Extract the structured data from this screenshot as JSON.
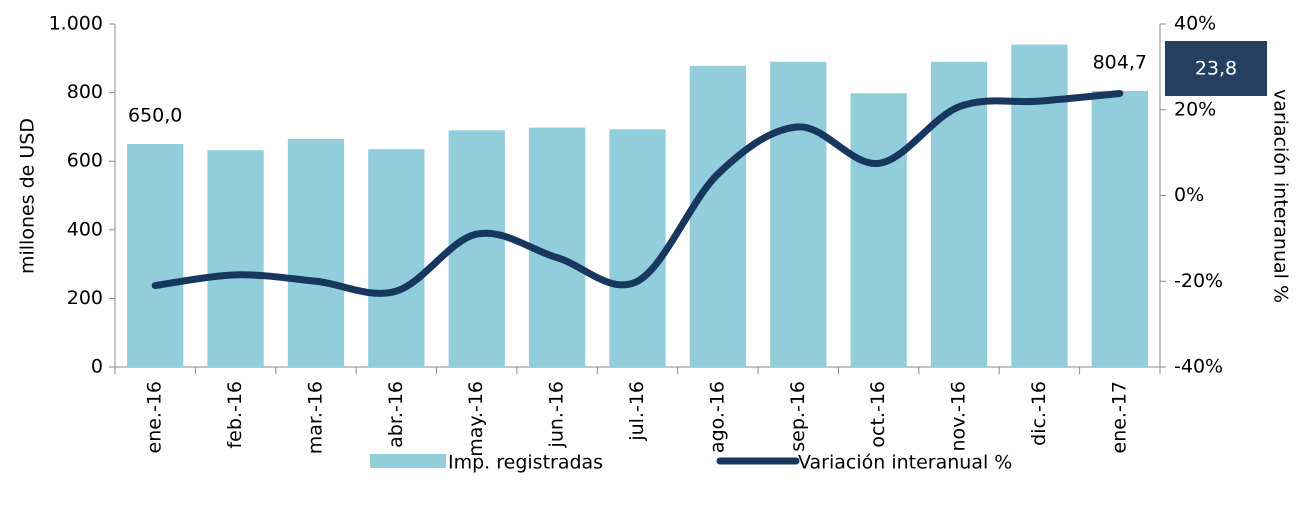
{
  "chart_data": {
    "type": "bar-line",
    "categories": [
      "ene.-16",
      "feb.-16",
      "mar.-16",
      "abr.-16",
      "may.-16",
      "jun.-16",
      "jul.-16",
      "ago.-16",
      "sep.-16",
      "oct.-16",
      "nov.-16",
      "dic.-16",
      "ene.-17"
    ],
    "series": [
      {
        "name": "Imp. registradas",
        "color": "#92cddc",
        "type": "bar",
        "values": [
          650.0,
          632,
          665,
          635,
          690,
          698,
          693,
          878,
          890,
          798,
          890,
          940,
          804.7
        ],
        "value_labels": [
          "650,0",
          null,
          null,
          null,
          null,
          null,
          null,
          null,
          null,
          null,
          null,
          null,
          "804,7"
        ]
      },
      {
        "name": "Variación interanual %",
        "color": "#17375e",
        "type": "line",
        "axis": "y2",
        "values": [
          -21,
          -18.5,
          -20,
          -22.3,
          -9,
          -14.5,
          -20,
          5,
          16,
          7.5,
          20.7,
          22,
          23.8
        ],
        "value_labels": [
          null,
          null,
          null,
          null,
          null,
          null,
          null,
          null,
          null,
          null,
          null,
          null,
          "23,8"
        ]
      }
    ],
    "ylabel": "millones de USD",
    "y2label": "variación interanual %",
    "ylim": [
      0,
      1000
    ],
    "yticks": [
      0,
      200,
      400,
      600,
      800,
      {
        "value": 1000,
        "label": "1.000"
      }
    ],
    "y2lim": [
      -40,
      40
    ],
    "y2ticks": [
      {
        "value": -40,
        "label": "-40%"
      },
      {
        "value": -20,
        "label": "-20%"
      },
      {
        "value": 0,
        "label": "0%"
      },
      {
        "value": 20,
        "label": "20%"
      },
      {
        "value": 40,
        "label": "40%"
      }
    ],
    "grid": false
  }
}
